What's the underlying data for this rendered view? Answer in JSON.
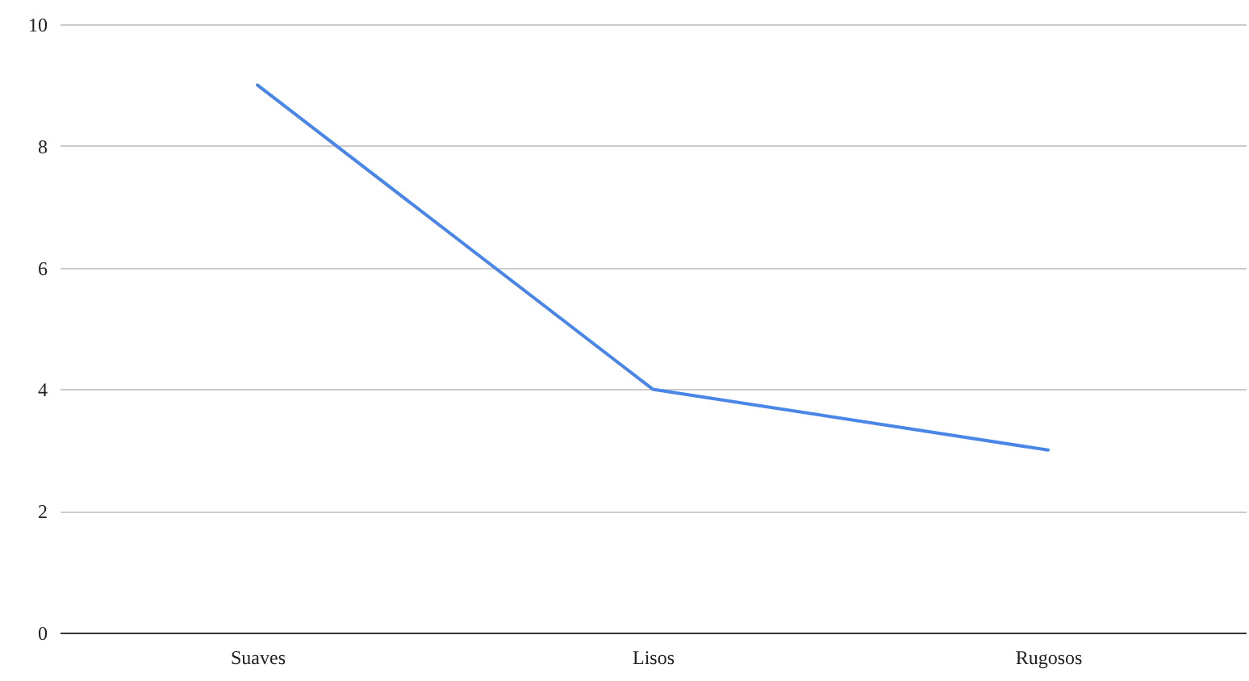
{
  "chart_data": {
    "type": "line",
    "categories": [
      "Suaves",
      "Lisos",
      "Rugosos"
    ],
    "series": [
      {
        "color": "#4a86e8",
        "values": [
          9,
          4,
          3
        ]
      }
    ],
    "ylim": [
      0,
      10
    ],
    "yticks": [
      0,
      2,
      4,
      6,
      8,
      10
    ],
    "grid": "y",
    "marker": "none",
    "line_style": "solid"
  }
}
